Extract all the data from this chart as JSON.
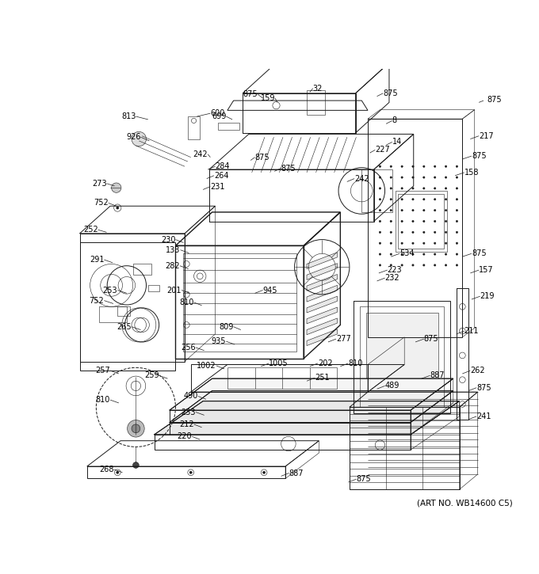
{
  "art_no": "(ART NO. WB14600 C5)",
  "bg_color": "#ffffff",
  "line_color": "#1a1a1a",
  "fig_width": 6.8,
  "fig_height": 7.25,
  "dpi": 100,
  "lw_thin": 0.4,
  "lw_med": 0.7,
  "lw_thick": 1.0,
  "label_fs": 7.0,
  "leader_lw": 0.5
}
